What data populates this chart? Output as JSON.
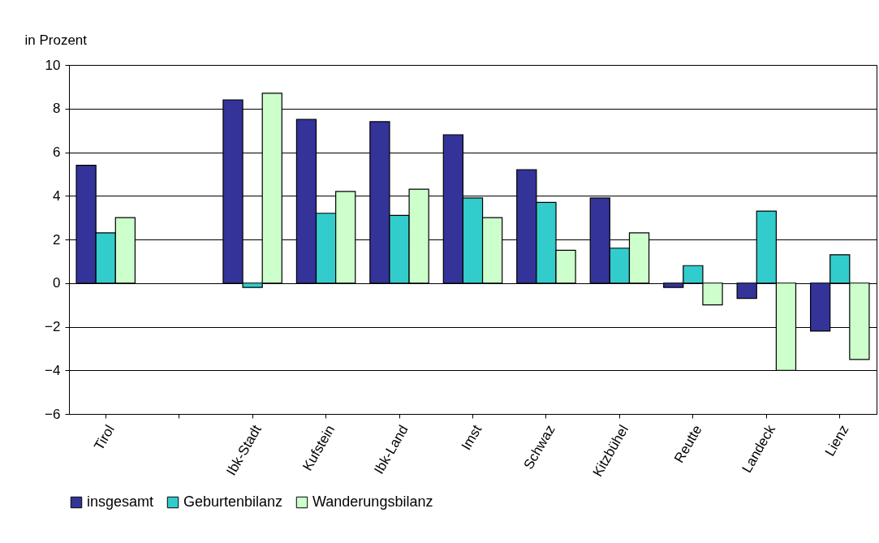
{
  "chart_data": {
    "type": "bar",
    "ylabel": "in Prozent",
    "categories": [
      "Tirol",
      null,
      "Ibk-Stadt",
      "Kufstein",
      "Ibk-Land",
      "Imst",
      "Schwaz",
      "Kitzbühel",
      "Reutte",
      "Landeck",
      "Lienz"
    ],
    "series": [
      {
        "name": "insgesamt",
        "color": "#333399",
        "values": [
          5.4,
          null,
          8.4,
          7.5,
          7.4,
          6.8,
          5.2,
          3.9,
          -0.2,
          -0.7,
          -2.2
        ]
      },
      {
        "name": "Geburtenbilanz",
        "color": "#33cccc",
        "values": [
          2.3,
          null,
          -0.2,
          3.2,
          3.1,
          3.9,
          3.7,
          1.6,
          0.8,
          3.3,
          1.3
        ]
      },
      {
        "name": "Wanderungsbilanz",
        "color": "#ccffcc",
        "values": [
          3.0,
          null,
          8.7,
          4.2,
          4.3,
          3.0,
          1.5,
          2.3,
          -1.0,
          -4.0,
          -3.5
        ]
      }
    ],
    "ylim": [
      -6,
      10
    ],
    "yticks": [
      -6,
      -4,
      -2,
      0,
      2,
      4,
      6,
      8,
      10
    ],
    "grid": "y",
    "legend": "bottom"
  }
}
